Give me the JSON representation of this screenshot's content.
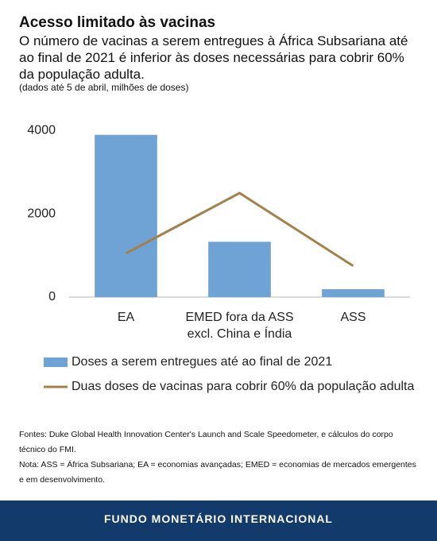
{
  "chart_data": {
    "type": "combo",
    "title": "Acesso limitado às vacinas",
    "subtitle": "O número de vacinas a serem entregues à África Subsariana até ao final de 2021 é inferior às doses necessárias para cobrir 60% da população adulta.",
    "note": "(dados até 5 de abril, milhões de doses)",
    "categories": [
      "EA",
      "EMED fora da ASS\nexcl. China e Índia",
      "ASS"
    ],
    "series": [
      {
        "name": "Doses a serem entregues até ao final de 2021",
        "type": "bar",
        "color": "#6fa3d6",
        "values": [
          3900,
          1330,
          190
        ]
      },
      {
        "name": "Duas doses de vacinas para cobrir 60% da população adulta",
        "type": "line",
        "color": "#a2814a",
        "values": [
          1050,
          2500,
          750
        ]
      }
    ],
    "ylim": [
      0,
      4200
    ],
    "yticks": [
      0,
      2000,
      4000
    ],
    "grid": false,
    "sources": [
      "Fontes: Duke Global Health Innovation Center's Launch and Scale Speedometer, e cálculos do corpo técnico do FMI.",
      "Nota: ASS = África Subsariana; EA = economias avançadas; EMED = economias de mercados emergentes e em desenvolvimento."
    ],
    "footer": "FUNDO MONETÁRIO INTERNACIONAL"
  }
}
